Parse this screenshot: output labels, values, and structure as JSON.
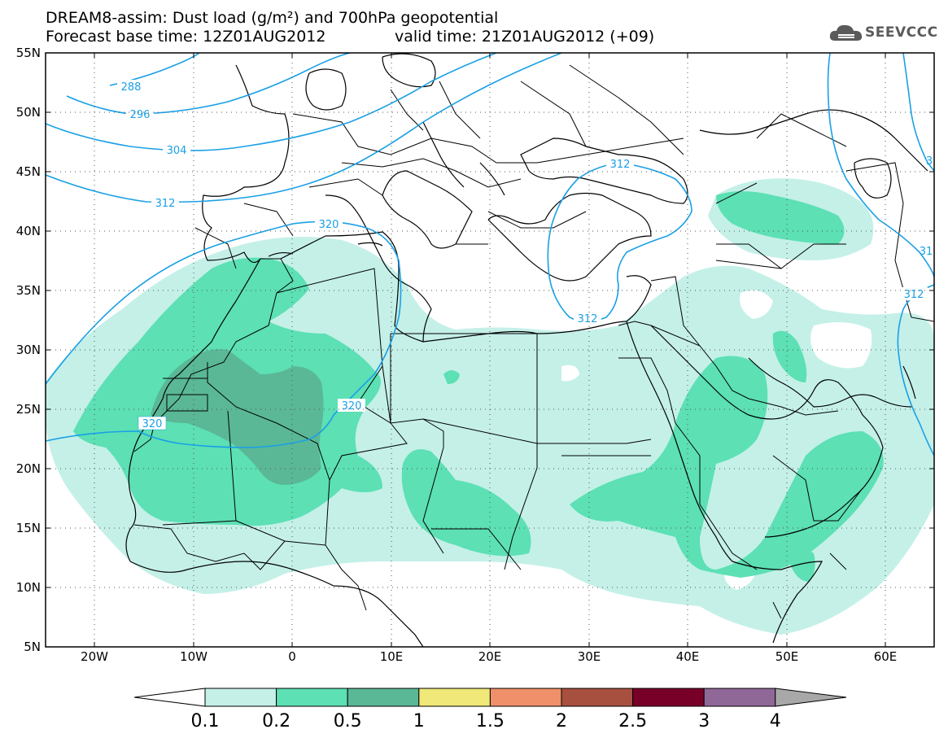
{
  "header": {
    "title_line1": "DREAM8-assim: Dust load (g/m²) and 700hPa geopotential",
    "forecast_base": "Forecast base time: 12Z01AUG2012",
    "valid_time": "valid time: 21Z01AUG2012 (+09)",
    "logo_text": "SEEVCCC",
    "logo_icon": "cloud-logo-icon"
  },
  "axes": {
    "lat_labels": [
      "55N",
      "50N",
      "45N",
      "40N",
      "35N",
      "30N",
      "25N",
      "20N",
      "15N",
      "10N",
      "5N"
    ],
    "lon_labels": [
      "20W",
      "10W",
      "0",
      "10E",
      "20E",
      "30E",
      "40E",
      "50E",
      "60E"
    ]
  },
  "geopotential_labels": [
    "288",
    "296",
    "304",
    "312",
    "312",
    "320",
    "320",
    "320",
    "312",
    "312",
    "31",
    "3"
  ],
  "colorbar": {
    "ticks": [
      "0.1",
      "0.2",
      "0.5",
      "1",
      "1.5",
      "2",
      "2.5",
      "3",
      "4"
    ],
    "colors": [
      "#c4f0e8",
      "#5ce0b4",
      "#5ab896",
      "#f0e878",
      "#f0906a",
      "#a85040",
      "#780028",
      "#906898",
      "#a8a8a8"
    ]
  },
  "colors": {
    "contour": "#1aa0e6",
    "dust_low": "#c4f0e8",
    "dust_mid": "#5ce0b4",
    "dust_high": "#5ab896"
  }
}
